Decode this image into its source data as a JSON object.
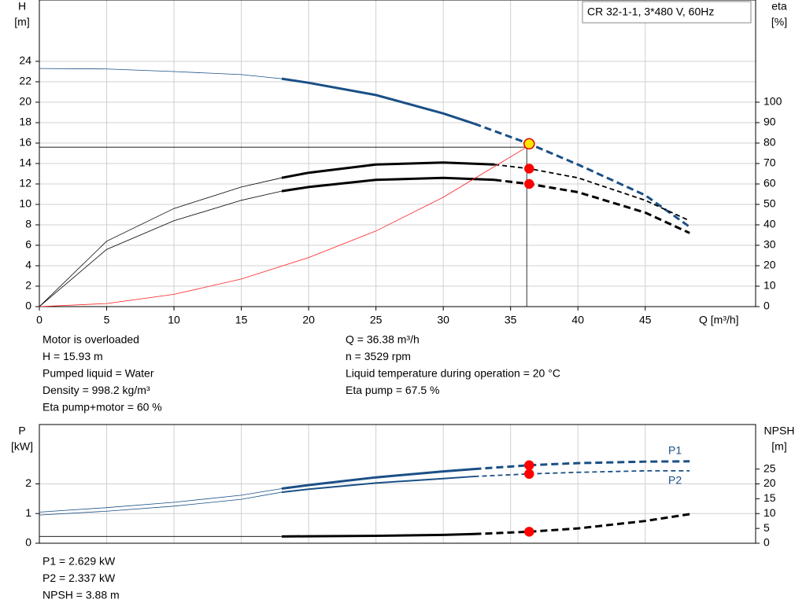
{
  "chart_data": [
    {
      "type": "line",
      "title": "CR 32-1-1, 3*480 V, 60Hz",
      "ylabel": "H",
      "yunit": "[m]",
      "y2label": "eta",
      "y2unit": "[%]",
      "xlabel": "Q [m³/h]",
      "xlim": [
        0,
        53.2
      ],
      "xticks": [
        0,
        5,
        10,
        15,
        20,
        25,
        30,
        35,
        40,
        45
      ],
      "ylim": [
        0,
        30
      ],
      "yticks": [
        0,
        2,
        4,
        6,
        8,
        10,
        12,
        14,
        16,
        18,
        20,
        22,
        24
      ],
      "y2lim": [
        0,
        150
      ],
      "y2ticks": [
        0,
        10,
        20,
        30,
        40,
        50,
        60,
        70,
        80,
        90,
        100
      ],
      "grid": true,
      "series": [
        {
          "color": "#1a4f86",
          "axis": "y",
          "x": [
            0,
            5,
            10,
            15,
            18,
            20,
            25,
            30,
            32.3,
            36.38,
            40,
            45,
            48.3
          ],
          "values": [
            23.3,
            23.25,
            23.0,
            22.7,
            22.3,
            21.9,
            20.7,
            18.9,
            17.9,
            15.93,
            13.9,
            10.9,
            7.8
          ],
          "styles": [
            "thin",
            "thin",
            "thin",
            "thin",
            "thick",
            "thick",
            "thick",
            "thick",
            "dashed",
            "dashed",
            "dashed",
            "dashed"
          ]
        },
        {
          "color": "#000000",
          "axis": "y2",
          "x": [
            0,
            5,
            10,
            15,
            18,
            20,
            25,
            30,
            33.8,
            36.38,
            40,
            45,
            48.3
          ],
          "values": [
            0,
            32,
            48,
            58.5,
            63,
            65.5,
            69.5,
            70.5,
            69.5,
            67.5,
            63,
            52,
            42
          ],
          "styles": [
            "thin",
            "thin",
            "thin",
            "thin",
            "thick",
            "thick",
            "thick",
            "thick",
            "dashed-thin",
            "dashed-thin",
            "dashed-thin",
            "dashed-thin"
          ]
        },
        {
          "color": "#000000",
          "axis": "y2",
          "x": [
            0,
            5,
            10,
            15,
            18,
            20,
            25,
            30,
            33.8,
            36.38,
            40,
            45,
            48.3
          ],
          "values": [
            0,
            28,
            42,
            52,
            56.5,
            58.5,
            62,
            63,
            62,
            60,
            56,
            46,
            36
          ],
          "styles": [
            "thin",
            "thin",
            "thin",
            "thin",
            "thick",
            "thick",
            "thick",
            "thick",
            "dashed",
            "dashed",
            "dashed",
            "dashed"
          ]
        },
        {
          "color": "#ff2020",
          "axis": "y",
          "x": [
            0,
            5,
            10,
            15,
            20,
            25,
            30,
            36.2
          ],
          "values": [
            0,
            0.3,
            1.2,
            2.7,
            4.8,
            7.4,
            10.7,
            15.6
          ],
          "styles": [
            "thin",
            "thin",
            "thin",
            "thin",
            "thin",
            "thin",
            "thin"
          ]
        }
      ],
      "guide": {
        "x": 36.2,
        "y": 15.6
      },
      "markers": [
        {
          "x": 36.38,
          "y": 15.93,
          "axis": "y",
          "color": "#ffe600",
          "edge": "#e00000"
        },
        {
          "x": 36.38,
          "y": 67.5,
          "axis": "y2",
          "color": "#ff0000",
          "edge": "#ff0000"
        },
        {
          "x": 36.38,
          "y": 60,
          "axis": "y2",
          "color": "#ff0000",
          "edge": "#ff0000"
        }
      ],
      "notes_left": [
        "Motor is overloaded",
        "H = 15.93 m",
        "Pumped liquid = Water",
        "Density = 998.2 kg/m³",
        "Eta pump+motor = 60 %"
      ],
      "notes_right": [
        "Q = 36.38 m³/h",
        "n = 3529 rpm",
        "Liquid temperature during operation = 20 °C",
        "Eta pump = 67.5 %"
      ]
    },
    {
      "type": "line",
      "ylabel": "P",
      "yunit": "[kW]",
      "y2label": "NPSH",
      "y2unit": "[m]",
      "xlim": [
        0,
        53.2
      ],
      "xgrid": [
        0,
        5,
        10,
        15,
        20,
        25,
        30,
        35,
        40,
        45
      ],
      "ylim": [
        0,
        4
      ],
      "yticks": [
        0,
        1,
        2
      ],
      "y2lim": [
        0,
        40
      ],
      "y2ticks": [
        0,
        5,
        10,
        15,
        20,
        25
      ],
      "grid": true,
      "series": [
        {
          "name": "P1",
          "label_side": "above",
          "color": "#1a4f86",
          "axis": "y",
          "x": [
            0,
            5,
            10,
            15,
            18,
            20,
            25,
            30,
            32.3,
            36.38,
            40,
            45,
            48.3
          ],
          "values": [
            1.05,
            1.2,
            1.38,
            1.62,
            1.84,
            1.96,
            2.22,
            2.42,
            2.5,
            2.629,
            2.7,
            2.75,
            2.76
          ],
          "styles": [
            "thin",
            "thin",
            "thin",
            "thin",
            "thick",
            "thick",
            "thick",
            "thick",
            "dashed",
            "dashed",
            "dashed",
            "dashed"
          ]
        },
        {
          "name": "P2",
          "label_side": "below",
          "color": "#1a4f86",
          "axis": "y",
          "x": [
            0,
            5,
            10,
            15,
            18,
            20,
            25,
            30,
            32.3,
            36.38,
            40,
            45,
            48.3
          ],
          "values": [
            0.95,
            1.08,
            1.25,
            1.48,
            1.72,
            1.82,
            2.03,
            2.18,
            2.25,
            2.337,
            2.39,
            2.44,
            2.44
          ],
          "styles": [
            "thin",
            "thin",
            "thin",
            "thin",
            "medium",
            "medium",
            "medium",
            "medium",
            "dashed-thin",
            "dashed-thin",
            "dashed-thin",
            "dashed-thin"
          ]
        },
        {
          "color": "#000000",
          "axis": "y2",
          "x": [
            0,
            5,
            10,
            15,
            18,
            20,
            25,
            30,
            32.3,
            36.38,
            40,
            45,
            48.3
          ],
          "values": [
            2.3,
            2.3,
            2.3,
            2.3,
            2.3,
            2.35,
            2.5,
            2.8,
            3.1,
            3.88,
            5,
            7.5,
            9.8
          ],
          "styles": [
            "thin",
            "thin",
            "thin",
            "thin",
            "thick",
            "thick",
            "thick",
            "thick",
            "dashed",
            "dashed",
            "dashed",
            "dashed"
          ]
        }
      ],
      "markers": [
        {
          "x": 36.38,
          "y": 2.629,
          "axis": "y",
          "color": "#ff0000",
          "edge": "#ff0000"
        },
        {
          "x": 36.38,
          "y": 2.337,
          "axis": "y",
          "color": "#ff0000",
          "edge": "#ff0000"
        },
        {
          "x": 36.38,
          "y": 3.88,
          "axis": "y2",
          "color": "#ff0000",
          "edge": "#ff0000"
        }
      ],
      "notes_left": [
        "P1 = 2.629 kW",
        "P2 = 2.337 kW",
        "NPSH = 3.88 m"
      ]
    }
  ]
}
